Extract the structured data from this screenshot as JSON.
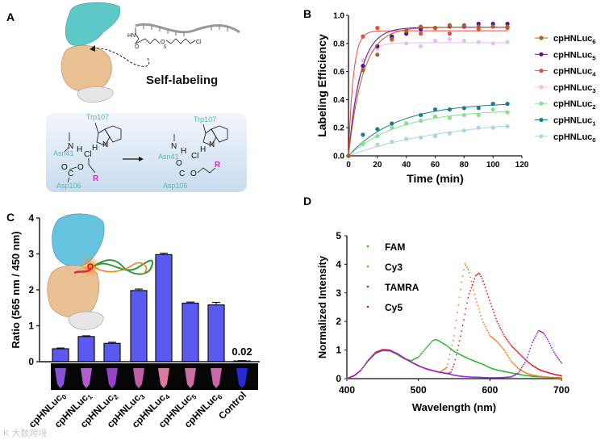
{
  "panels": {
    "a": "A",
    "b": "B",
    "c": "C",
    "d": "D"
  },
  "panel_a": {
    "title": "Self-labeling",
    "linker": {
      "hn": "HN",
      "o": "O",
      "o2": "O",
      "n": "5",
      "cl": "Cl"
    },
    "left": {
      "trp": "Trp107",
      "asn": "Asn41",
      "asp": "Asp106",
      "n": "N",
      "n2": "N",
      "h1": "H",
      "h2": "H",
      "cl": "Cl",
      "o": "O",
      "o2": "O",
      "c": "C",
      "r": "R"
    },
    "right": {
      "trp": "Trp107",
      "asn": "Asn41",
      "asp": "Asp106",
      "n": "N",
      "n2": "N",
      "h1": "H",
      "h2": "H",
      "cl": "Cl",
      "o": "O",
      "o2": "O",
      "c": "C",
      "r": "R"
    },
    "r_color": "#e020d0"
  },
  "chart_data": [
    {
      "id": "B",
      "type": "scatter",
      "title": "",
      "xlabel": "Time (min)",
      "ylabel": "Labeling Efficiency",
      "xlim": [
        0,
        120
      ],
      "ylim": [
        0,
        1.0
      ],
      "xticks": [
        "0",
        "20",
        "40",
        "60",
        "80",
        "100",
        "120"
      ],
      "yticks": [
        "0.0",
        "0.2",
        "0.4",
        "0.6",
        "0.8",
        "1.0"
      ],
      "legend_position": "right",
      "x": [
        0,
        10,
        20,
        30,
        40,
        50,
        60,
        70,
        80,
        90,
        100,
        110
      ],
      "series": [
        {
          "name": "cpHNLuc",
          "sub": "6",
          "color": "#b5601c",
          "values": [
            0,
            0.61,
            0.72,
            0.83,
            0.89,
            0.92,
            0.91,
            0.93,
            0.93,
            0.92,
            0.92,
            0.92
          ],
          "fit": {
            "A": 0.915,
            "k": 0.1
          }
        },
        {
          "name": "cpHNLuc",
          "sub": "5",
          "color": "#5b0e9c",
          "values": [
            0,
            0.64,
            0.78,
            0.85,
            0.87,
            0.9,
            0.91,
            0.92,
            0.92,
            0.94,
            0.94,
            0.94
          ],
          "fit": {
            "A": 0.915,
            "k": 0.12
          }
        },
        {
          "name": "cpHNLuc",
          "sub": "4",
          "color": "#ea4a3c",
          "values": [
            0,
            0.85,
            0.91,
            0.84,
            0.87,
            0.87,
            0.91,
            0.87,
            0.92,
            0.9,
            0.92,
            0.91
          ],
          "fit": {
            "A": 0.89,
            "k": 0.3
          }
        },
        {
          "name": "cpHNLuc",
          "sub": "3",
          "color": "#e8bff0",
          "values": [
            0,
            0.68,
            0.76,
            0.82,
            0.8,
            0.78,
            0.82,
            0.83,
            0.82,
            0.81,
            0.8,
            0.81
          ],
          "fit": {
            "A": 0.805,
            "k": 0.16
          }
        },
        {
          "name": "cpHNLuc",
          "sub": "2",
          "color": "#86e090",
          "values": [
            0,
            0.09,
            0.14,
            0.2,
            0.23,
            0.25,
            0.28,
            0.27,
            0.29,
            0.29,
            0.33,
            0.31
          ],
          "fit": {
            "A": 0.33,
            "k": 0.028
          }
        },
        {
          "name": "cpHNLuc",
          "sub": "1",
          "color": "#17808a",
          "values": [
            0,
            0.15,
            0.19,
            0.23,
            0.23,
            0.29,
            0.33,
            0.33,
            0.34,
            0.34,
            0.37,
            0.37
          ],
          "fit": {
            "A": 0.38,
            "k": 0.03
          }
        },
        {
          "name": "cpHNLuc",
          "sub": "0",
          "color": "#aad6df",
          "values": [
            0,
            0.08,
            0.08,
            0.1,
            0.12,
            0.13,
            0.14,
            0.16,
            0.18,
            0.2,
            0.2,
            0.21
          ],
          "fit": {
            "A": 0.27,
            "k": 0.014
          }
        }
      ]
    },
    {
      "id": "C",
      "type": "bar",
      "ylabel": "Ratio (565 nm / 450 nm)",
      "ylim": [
        0,
        4
      ],
      "yticks": [
        "0",
        "1",
        "2",
        "3",
        "4"
      ],
      "categories": [
        {
          "name": "cpHNLuc",
          "sub": "0"
        },
        {
          "name": "cpHNLuc",
          "sub": "1"
        },
        {
          "name": "cpHNLuc",
          "sub": "2"
        },
        {
          "name": "cpHNLuc",
          "sub": "3"
        },
        {
          "name": "cpHNLuc",
          "sub": "4"
        },
        {
          "name": "cpHNLuc",
          "sub": "5"
        },
        {
          "name": "cpHNLuc",
          "sub": "6"
        },
        {
          "name": "Control",
          "sub": ""
        }
      ],
      "values": [
        0.36,
        0.7,
        0.51,
        1.98,
        2.98,
        1.63,
        1.58,
        0.02
      ],
      "errors": [
        0.02,
        0.02,
        0.03,
        0.04,
        0.04,
        0.03,
        0.07,
        0.01
      ],
      "annotation": "0.02",
      "bar_color": "#5a5af2",
      "tube_colors": [
        "#a060ff",
        "#d070f0",
        "#b050f0",
        "#e070c8",
        "#ff90c0",
        "#f080c0",
        "#f078c8",
        "#3030ff"
      ]
    },
    {
      "id": "D",
      "type": "scatter",
      "xlabel": "Wavelength (nm)",
      "ylabel": "Normalized Intensity",
      "xlim": [
        400,
        700
      ],
      "ylim": [
        0,
        5
      ],
      "xticks": [
        "400",
        "500",
        "600",
        "700"
      ],
      "yticks": [
        "0",
        "1",
        "2",
        "3",
        "4",
        "5"
      ],
      "legend_position": "top-left",
      "series": [
        {
          "name": "FAM",
          "color": "#22b522",
          "points": [
            [
              400,
              0
            ],
            [
              410,
              0.1
            ],
            [
              420,
              0.3
            ],
            [
              430,
              0.62
            ],
            [
              440,
              0.88
            ],
            [
              450,
              0.98
            ],
            [
              460,
              0.97
            ],
            [
              470,
              0.85
            ],
            [
              480,
              0.7
            ],
            [
              490,
              0.63
            ],
            [
              500,
              0.75
            ],
            [
              510,
              1.05
            ],
            [
              520,
              1.33
            ],
            [
              525,
              1.37
            ],
            [
              530,
              1.3
            ],
            [
              540,
              1.15
            ],
            [
              550,
              0.95
            ],
            [
              560,
              0.82
            ],
            [
              570,
              0.7
            ],
            [
              580,
              0.6
            ],
            [
              590,
              0.5
            ],
            [
              600,
              0.38
            ],
            [
              610,
              0.3
            ],
            [
              620,
              0.25
            ],
            [
              630,
              0.2
            ],
            [
              640,
              0.15
            ],
            [
              650,
              0.11
            ],
            [
              660,
              0.08
            ],
            [
              670,
              0.06
            ],
            [
              680,
              0.05
            ],
            [
              690,
              0.04
            ],
            [
              700,
              0.03
            ]
          ]
        },
        {
          "name": "Cy3",
          "color": "#f07a20",
          "points": [
            [
              400,
              0
            ],
            [
              410,
              0.1
            ],
            [
              420,
              0.3
            ],
            [
              430,
              0.65
            ],
            [
              440,
              0.9
            ],
            [
              450,
              1.0
            ],
            [
              460,
              0.98
            ],
            [
              470,
              0.88
            ],
            [
              480,
              0.72
            ],
            [
              490,
              0.58
            ],
            [
              500,
              0.45
            ],
            [
              510,
              0.35
            ],
            [
              520,
              0.28
            ],
            [
              530,
              0.22
            ],
            [
              540,
              0.4
            ],
            [
              550,
              1.5
            ],
            [
              560,
              3.3
            ],
            [
              565,
              4.02
            ],
            [
              570,
              3.8
            ],
            [
              580,
              2.8
            ],
            [
              590,
              2.0
            ],
            [
              600,
              1.5
            ],
            [
              610,
              1.3
            ],
            [
              620,
              1.0
            ],
            [
              630,
              0.6
            ],
            [
              640,
              0.35
            ],
            [
              650,
              0.2
            ],
            [
              660,
              0.12
            ],
            [
              670,
              0.08
            ],
            [
              680,
              0.05
            ],
            [
              690,
              0.03
            ],
            [
              700,
              0.02
            ]
          ]
        },
        {
          "name": "TAMRA",
          "color": "#e01818",
          "points": [
            [
              400,
              0
            ],
            [
              410,
              0.1
            ],
            [
              420,
              0.3
            ],
            [
              430,
              0.65
            ],
            [
              440,
              0.92
            ],
            [
              450,
              1.02
            ],
            [
              460,
              1.0
            ],
            [
              470,
              0.88
            ],
            [
              480,
              0.72
            ],
            [
              490,
              0.58
            ],
            [
              500,
              0.45
            ],
            [
              510,
              0.35
            ],
            [
              520,
              0.28
            ],
            [
              530,
              0.22
            ],
            [
              540,
              0.18
            ],
            [
              545,
              0.2
            ],
            [
              550,
              0.5
            ],
            [
              560,
              1.6
            ],
            [
              570,
              2.9
            ],
            [
              580,
              3.6
            ],
            [
              585,
              3.7
            ],
            [
              590,
              3.45
            ],
            [
              600,
              2.7
            ],
            [
              610,
              2.0
            ],
            [
              620,
              1.5
            ],
            [
              630,
              1.15
            ],
            [
              640,
              0.9
            ],
            [
              650,
              0.65
            ],
            [
              660,
              0.45
            ],
            [
              670,
              0.3
            ],
            [
              680,
              0.22
            ],
            [
              690,
              0.15
            ],
            [
              700,
              0.1
            ]
          ]
        },
        {
          "name": "Cy5",
          "color": "#9a20d8",
          "points": [
            [
              400,
              0
            ],
            [
              410,
              0.1
            ],
            [
              420,
              0.3
            ],
            [
              430,
              0.65
            ],
            [
              440,
              0.9
            ],
            [
              450,
              1.0
            ],
            [
              460,
              0.98
            ],
            [
              470,
              0.88
            ],
            [
              480,
              0.72
            ],
            [
              490,
              0.58
            ],
            [
              500,
              0.45
            ],
            [
              510,
              0.35
            ],
            [
              520,
              0.28
            ],
            [
              530,
              0.22
            ],
            [
              540,
              0.18
            ],
            [
              550,
              0.12
            ],
            [
              560,
              0.08
            ],
            [
              570,
              0.06
            ],
            [
              580,
              0.05
            ],
            [
              590,
              0.04
            ],
            [
              600,
              0.03
            ],
            [
              610,
              0.03
            ],
            [
              620,
              0.04
            ],
            [
              630,
              0.06
            ],
            [
              640,
              0.2
            ],
            [
              650,
              0.6
            ],
            [
              660,
              1.3
            ],
            [
              668,
              1.68
            ],
            [
              675,
              1.6
            ],
            [
              680,
              1.4
            ],
            [
              690,
              0.9
            ],
            [
              700,
              0.55
            ]
          ]
        }
      ]
    }
  ],
  "watermark": "K 大数跨境"
}
